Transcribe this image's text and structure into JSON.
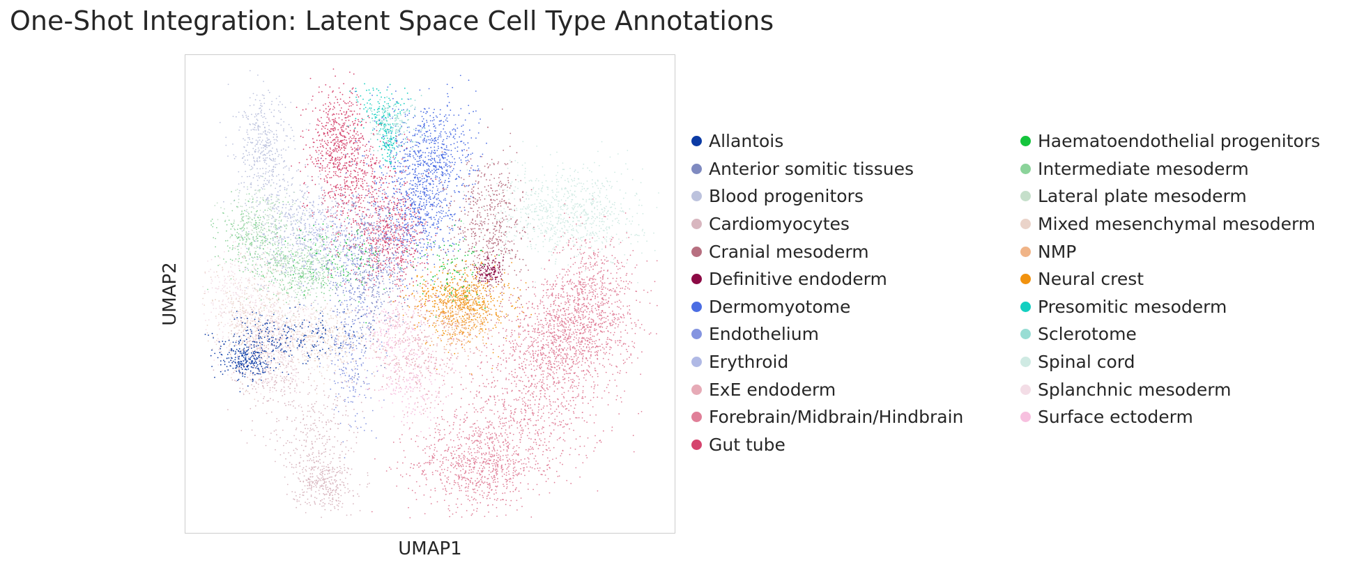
{
  "chart_data": {
    "type": "scatter",
    "title": "One-Shot Integration: Latent Space Cell Type Annotations",
    "xlabel": "UMAP1",
    "ylabel": "UMAP2",
    "xlim": [
      0,
      100
    ],
    "ylim": [
      0,
      100
    ],
    "grid": false,
    "ticks": false,
    "legend_placement": "right, two columns",
    "series": [
      {
        "name": "Allantois",
        "color": "#0b3aa4",
        "n": 500,
        "clusters": [
          [
            18,
            40,
            8,
            3
          ],
          [
            10,
            35,
            3,
            2
          ]
        ]
      },
      {
        "name": "Anterior somitic tissues",
        "color": "#7f8ac0",
        "n": 300,
        "clusters": [
          [
            37,
            55,
            4,
            8
          ]
        ]
      },
      {
        "name": "Blood progenitors",
        "color": "#bcc2dd",
        "n": 750,
        "clusters": [
          [
            14,
            82,
            3,
            6
          ],
          [
            20,
            65,
            5,
            7
          ]
        ]
      },
      {
        "name": "Cardiomyocytes",
        "color": "#d8b6bf",
        "n": 900,
        "clusters": [
          [
            25,
            18,
            5,
            7
          ],
          [
            15,
            35,
            4,
            6
          ],
          [
            27,
            8,
            3,
            3
          ]
        ]
      },
      {
        "name": "Cranial mesoderm",
        "color": "#b76f80",
        "n": 550,
        "clusters": [
          [
            63,
            65,
            4,
            8
          ]
        ]
      },
      {
        "name": "Definitive endoderm",
        "color": "#8c0a45",
        "n": 120,
        "clusters": [
          [
            63,
            55,
            1.5,
            1.5
          ]
        ]
      },
      {
        "name": "Dermomyotome",
        "color": "#4b6de3",
        "n": 1100,
        "clusters": [
          [
            50,
            82,
            5,
            6
          ],
          [
            48,
            70,
            4,
            6
          ]
        ]
      },
      {
        "name": "Endothelium",
        "color": "#8494e0",
        "n": 600,
        "clusters": [
          [
            38,
            60,
            6,
            7
          ],
          [
            33,
            40,
            3,
            10
          ]
        ]
      },
      {
        "name": "Erythroid",
        "color": "#b0b9e5",
        "n": 350,
        "clusters": [
          [
            27,
            62,
            6,
            5
          ]
        ]
      },
      {
        "name": "ExE endoderm",
        "color": "#e6aab6",
        "n": 350,
        "clusters": [
          [
            48,
            38,
            5,
            6
          ]
        ]
      },
      {
        "name": "Forebrain/Midbrain/Hindbrain",
        "color": "#e07f98",
        "n": 3000,
        "clusters": [
          [
            72,
            25,
            8,
            9
          ],
          [
            60,
            12,
            7,
            5
          ],
          [
            85,
            48,
            5,
            8
          ],
          [
            78,
            40,
            7,
            6
          ]
        ]
      },
      {
        "name": "Gut tube",
        "color": "#d5446e",
        "n": 1500,
        "clusters": [
          [
            30,
            84,
            3,
            6
          ],
          [
            35,
            73,
            5,
            7
          ],
          [
            42,
            62,
            4,
            5
          ]
        ]
      },
      {
        "name": "Haematoendothelial progenitors",
        "color": "#14c43c",
        "n": 200,
        "clusters": [
          [
            30,
            58,
            6,
            4
          ],
          [
            55,
            55,
            4,
            4
          ]
        ]
      },
      {
        "name": "Intermediate mesoderm",
        "color": "#8bd39a",
        "n": 600,
        "clusters": [
          [
            12,
            62,
            4,
            4
          ],
          [
            23,
            55,
            5,
            3
          ]
        ]
      },
      {
        "name": "Lateral plate mesoderm",
        "color": "#c5dfca",
        "n": 400,
        "clusters": [
          [
            14,
            66,
            4,
            4
          ],
          [
            22,
            56,
            4,
            4
          ]
        ]
      },
      {
        "name": "Mixed mesenchymal mesoderm",
        "color": "#ead3c9",
        "n": 700,
        "clusters": [
          [
            12,
            45,
            5,
            6
          ],
          [
            28,
            40,
            6,
            4
          ]
        ]
      },
      {
        "name": "NMP",
        "color": "#f0b487",
        "n": 200,
        "clusters": [
          [
            57,
            44,
            3,
            3
          ]
        ]
      },
      {
        "name": "Neural crest",
        "color": "#f1920e",
        "n": 700,
        "clusters": [
          [
            57,
            48,
            5,
            4
          ]
        ]
      },
      {
        "name": "Presomitic mesoderm",
        "color": "#13cfc0",
        "n": 220,
        "clusters": [
          [
            39,
            91,
            2.5,
            2.5
          ],
          [
            41,
            84,
            1,
            3
          ]
        ]
      },
      {
        "name": "Sclerotome",
        "color": "#98ddd4",
        "n": 150,
        "clusters": [
          [
            42,
            88,
            3,
            3
          ]
        ]
      },
      {
        "name": "Spinal cord",
        "color": "#cfeae3",
        "n": 800,
        "clusters": [
          [
            80,
            68,
            8,
            5
          ]
        ]
      },
      {
        "name": "Splanchnic mesoderm",
        "color": "#f3dde6",
        "n": 800,
        "clusters": [
          [
            10,
            48,
            5,
            7
          ],
          [
            18,
            40,
            5,
            5
          ]
        ]
      },
      {
        "name": "Surface ectoderm",
        "color": "#f7c0df",
        "n": 400,
        "clusters": [
          [
            46,
            30,
            4,
            5
          ],
          [
            42,
            42,
            4,
            4
          ]
        ]
      }
    ]
  }
}
